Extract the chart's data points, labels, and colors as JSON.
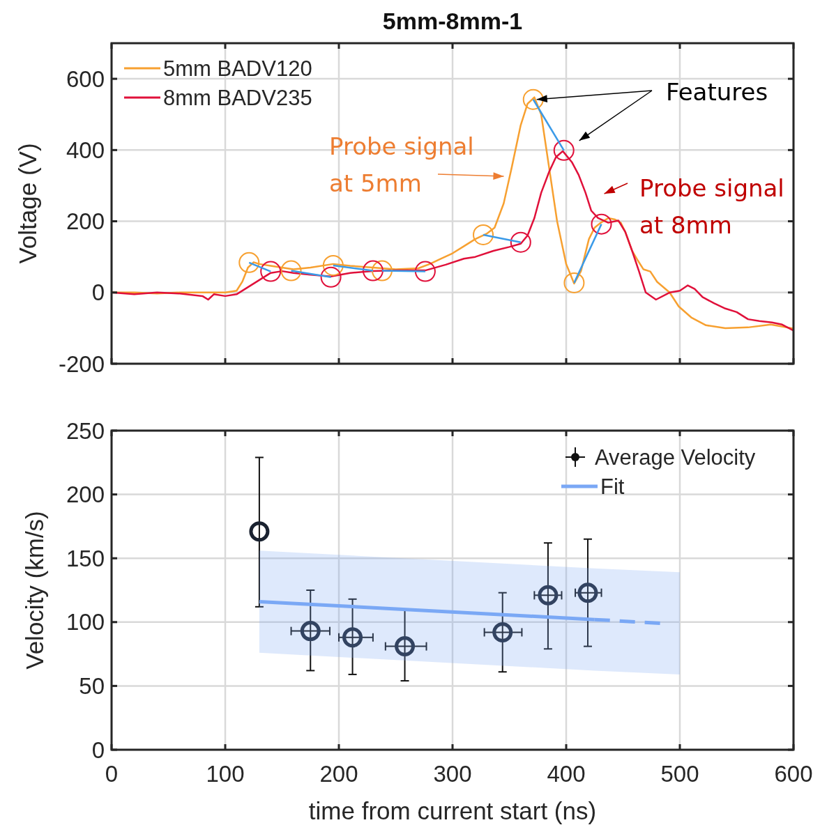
{
  "chart_data": [
    {
      "type": "line",
      "title": "5mm-8mm-1",
      "ylabel": "Voltage (V)",
      "xlim": [
        0,
        600
      ],
      "xticks": [
        0,
        100,
        200,
        300,
        400,
        500,
        600
      ],
      "ylim": [
        -200,
        700
      ],
      "yticks": [
        -200,
        0,
        200,
        400,
        600
      ],
      "tick_labels": "y",
      "grid": true,
      "legend": "top left",
      "line_style": "solid",
      "annotations": [
        {
          "text": "Features",
          "x": 371,
          "y": 542
        },
        {
          "text": "Probe signal at 5mm",
          "x": 350,
          "y": 330
        },
        {
          "text": "Probe signal at 8mm",
          "x": 420,
          "y": 250
        }
      ],
      "series": [
        {
          "name": "5mm BADV120",
          "color": "#f7a030",
          "x": [
            0,
            20,
            40,
            60,
            80,
            100,
            110,
            115,
            120,
            125,
            130,
            140,
            150,
            160,
            175,
            195,
            210,
            230,
            250,
            270,
            280,
            290,
            300,
            310,
            320,
            330,
            337,
            345,
            352,
            360,
            366,
            372,
            378,
            385,
            392,
            400,
            407,
            413,
            420,
            425,
            430,
            437,
            443,
            448,
            452,
            458,
            463,
            468,
            474,
            480,
            491,
            499,
            510,
            523,
            540,
            560,
            580,
            600
          ],
          "values": [
            0,
            0,
            -3,
            0,
            0,
            0,
            5,
            30,
            70,
            85,
            80,
            75,
            70,
            65,
            70,
            80,
            75,
            70,
            65,
            68,
            80,
            95,
            110,
            130,
            150,
            165,
            182,
            250,
            350,
            470,
            530,
            548,
            500,
            350,
            200,
            80,
            25,
            60,
            150,
            182,
            195,
            209,
            205,
            196,
            170,
            117,
            90,
            65,
            59,
            30,
            0,
            -39,
            -70,
            -92,
            -100,
            -98,
            -90,
            -101
          ]
        },
        {
          "name": "8mm BADV235",
          "color": "#e0103a",
          "x": [
            0,
            20,
            40,
            60,
            80,
            85,
            90,
            100,
            110,
            120,
            130,
            140,
            150,
            160,
            175,
            193,
            210,
            230,
            250,
            276,
            294,
            310,
            320,
            336,
            350,
            360,
            366,
            372,
            378,
            385,
            391,
            397,
            405,
            411,
            417,
            422,
            428,
            437,
            446,
            452,
            458,
            464,
            470,
            479,
            491,
            500,
            507,
            513,
            520,
            530,
            540,
            550,
            560,
            570,
            581,
            590,
            600
          ],
          "values": [
            0,
            -5,
            0,
            -3,
            -10,
            -20,
            -5,
            -10,
            -5,
            15,
            35,
            55,
            60,
            55,
            50,
            45,
            55,
            60,
            62,
            62,
            78,
            95,
            100,
            117,
            128,
            137,
            160,
            209,
            280,
            339,
            380,
            397,
            366,
            330,
            280,
            230,
            209,
            196,
            202,
            170,
            117,
            60,
            0,
            -20,
            0,
            5,
            20,
            10,
            -13,
            -30,
            -45,
            -55,
            -75,
            -80,
            -84,
            -90,
            -107
          ]
        },
        {
          "type": "scatter",
          "marker": "circle",
          "color": "#f7a030",
          "x": [
            121,
            158,
            195,
            238,
            327,
            371,
            407
          ],
          "values": [
            84,
            61,
            76,
            61,
            162,
            542,
            27
          ]
        },
        {
          "type": "scatter",
          "marker": "circle",
          "color": "#e0103a",
          "x": [
            140,
            193,
            230,
            276,
            360,
            398,
            431
          ],
          "values": [
            59,
            43,
            61,
            59,
            141,
            399,
            192
          ]
        },
        {
          "color": "#3a9ae8",
          "x": [
            121,
            140
          ],
          "values": [
            84,
            59
          ]
        },
        {
          "color": "#3a9ae8",
          "x": [
            158,
            193
          ],
          "values": [
            61,
            43
          ]
        },
        {
          "color": "#3a9ae8",
          "x": [
            195,
            230
          ],
          "values": [
            76,
            61
          ]
        },
        {
          "color": "#3a9ae8",
          "x": [
            238,
            276
          ],
          "values": [
            61,
            59
          ]
        },
        {
          "color": "#3a9ae8",
          "x": [
            327,
            360
          ],
          "values": [
            162,
            141
          ]
        },
        {
          "color": "#3a9ae8",
          "x": [
            371,
            398
          ],
          "values": [
            542,
            399
          ]
        },
        {
          "color": "#3a9ae8",
          "x": [
            407,
            431
          ],
          "values": [
            27,
            192
          ]
        }
      ]
    },
    {
      "type": "scatter",
      "xlabel": "time from current start (ns)",
      "ylabel": "Velocity (km/s)",
      "xlim": [
        0,
        600
      ],
      "xticks": [
        0,
        100,
        200,
        300,
        400,
        500,
        600
      ],
      "ylim": [
        0,
        250
      ],
      "yticks": [
        0,
        50,
        100,
        150,
        200,
        250
      ],
      "grid": true,
      "legend": "top right",
      "series": [
        {
          "name": "Average Velocity",
          "marker": "circle",
          "color": "#1a2230",
          "x": [
            130,
            175,
            212,
            258,
            344,
            384,
            419
          ],
          "values": [
            171,
            93,
            88,
            81,
            92,
            121,
            123
          ],
          "errors": [
            [
              112,
              229
            ],
            [
              62,
              125
            ],
            [
              59,
              118
            ],
            [
              54,
              110
            ],
            [
              61,
              123
            ],
            [
              79,
              162
            ],
            [
              81,
              165
            ]
          ],
          "xerrors": [
            null,
            [
              158,
              192
            ],
            [
              200,
              230
            ],
            [
              241,
              277
            ],
            [
              328,
              361
            ],
            [
              372,
              396
            ],
            [
              408,
              431
            ]
          ]
        },
        {
          "type": "line",
          "name": "Fit",
          "color": "#7aa8f5",
          "x": [
            130,
            425,
            500
          ],
          "values": [
            116,
            102,
            null
          ],
          "lower": [
            76,
            62,
            59
          ],
          "upper": [
            156,
            142,
            139
          ]
        },
        {
          "type": "line",
          "line_style": "dashed",
          "color": "#7aa8f5",
          "x": [
            425,
            485
          ],
          "values": [
            102,
            99
          ]
        }
      ]
    }
  ]
}
